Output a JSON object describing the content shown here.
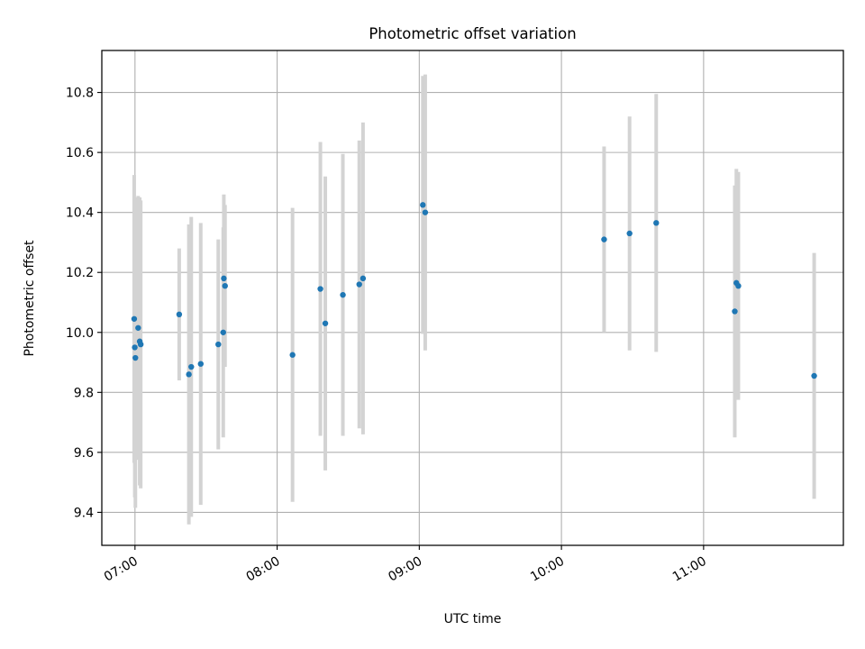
{
  "chart_data": {
    "type": "scatter",
    "title": "Photometric offset variation",
    "xlabel": "UTC time",
    "ylabel": "Photometric offset",
    "xlim": [
      "06:46",
      "11:59"
    ],
    "ylim": [
      9.29,
      10.94
    ],
    "x_ticks": [
      "07:00",
      "08:00",
      "09:00",
      "10:00",
      "11:00"
    ],
    "y_ticks": [
      9.4,
      9.6,
      9.8,
      10.0,
      10.2,
      10.4,
      10.6,
      10.8
    ],
    "y_tick_labels": [
      "9.4",
      "9.6",
      "9.8",
      "10.0",
      "10.2",
      "10.4",
      "10.6",
      "10.8"
    ],
    "grid": true,
    "colors": {
      "point": "#1f77b4",
      "errorbar": "#d3d3d3",
      "grid": "#b0b0b0"
    },
    "series": [
      {
        "points": [
          {
            "x": "06:59:40",
            "y": 10.045,
            "err": 0.48
          },
          {
            "x": "06:59:55",
            "y": 9.95,
            "err": 0.5
          },
          {
            "x": "07:00:10",
            "y": 9.915,
            "err": 0.5
          },
          {
            "x": "07:01:20",
            "y": 10.015,
            "err": 0.44
          },
          {
            "x": "07:02:00",
            "y": 9.97,
            "err": 0.48
          },
          {
            "x": "07:02:25",
            "y": 9.96,
            "err": 0.48
          },
          {
            "x": "07:18:40",
            "y": 10.06,
            "err": 0.22
          },
          {
            "x": "07:22:45",
            "y": 9.86,
            "err": 0.5
          },
          {
            "x": "07:23:45",
            "y": 9.885,
            "err": 0.5
          },
          {
            "x": "07:27:45",
            "y": 9.895,
            "err": 0.47
          },
          {
            "x": "07:35:10",
            "y": 9.96,
            "err": 0.35
          },
          {
            "x": "07:37:15",
            "y": 10.0,
            "err": 0.35
          },
          {
            "x": "07:37:30",
            "y": 10.18,
            "err": 0.28
          },
          {
            "x": "07:38:00",
            "y": 10.155,
            "err": 0.27
          },
          {
            "x": "08:06:30",
            "y": 9.925,
            "err": 0.49
          },
          {
            "x": "08:18:15",
            "y": 10.145,
            "err": 0.49
          },
          {
            "x": "08:20:20",
            "y": 10.03,
            "err": 0.49
          },
          {
            "x": "08:27:45",
            "y": 10.125,
            "err": 0.47
          },
          {
            "x": "08:34:40",
            "y": 10.16,
            "err": 0.48
          },
          {
            "x": "08:36:15",
            "y": 10.18,
            "err": 0.52
          },
          {
            "x": "09:01:30",
            "y": 10.425,
            "err": 0.43
          },
          {
            "x": "09:02:30",
            "y": 10.4,
            "err": 0.46
          },
          {
            "x": "10:18:00",
            "y": 10.31,
            "err": 0.31
          },
          {
            "x": "10:28:45",
            "y": 10.33,
            "err": 0.39
          },
          {
            "x": "10:40:00",
            "y": 10.365,
            "err": 0.43
          },
          {
            "x": "11:13:10",
            "y": 10.07,
            "err": 0.42
          },
          {
            "x": "11:13:50",
            "y": 10.165,
            "err": 0.38
          },
          {
            "x": "11:14:40",
            "y": 10.155,
            "err": 0.38
          },
          {
            "x": "11:46:40",
            "y": 9.855,
            "err": 0.41
          }
        ]
      }
    ]
  }
}
